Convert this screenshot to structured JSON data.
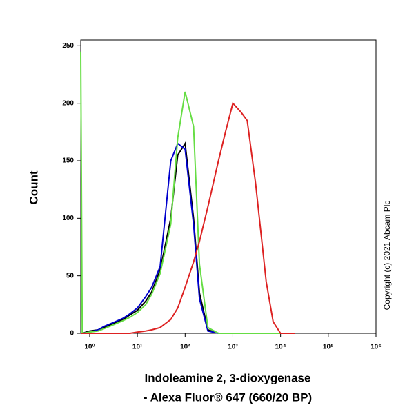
{
  "chart_data": {
    "type": "line",
    "xlabel": [
      "Indoleamine 2, 3-dioxygenase",
      "- Alexa Fluor® 647 (660/20 BP)"
    ],
    "ylabel": "Count",
    "annotation": "Copyright (c) 2021 Abcam Plc",
    "x": [
      0.65,
      0.7,
      1,
      1.5,
      2,
      3,
      5,
      7,
      10,
      15,
      20,
      30,
      50,
      70,
      100,
      150,
      200,
      300,
      500,
      700,
      1000,
      1500,
      2000,
      3000,
      5000,
      7000,
      10000,
      20000
    ],
    "xscale": "log",
    "xlim": [
      0.65,
      1000000
    ],
    "xticks": [
      {
        "value": 1,
        "label": "10⁰"
      },
      {
        "value": 10,
        "label": "10¹"
      },
      {
        "value": 100,
        "label": "10²"
      },
      {
        "value": 1000,
        "label": "10³"
      },
      {
        "value": 10000,
        "label": "10⁴"
      },
      {
        "value": 100000,
        "label": "10⁵"
      },
      {
        "value": 1000000,
        "label": "10⁶"
      }
    ],
    "ylim": [
      0,
      255
    ],
    "yticks": [
      0,
      50,
      100,
      150,
      200,
      250
    ],
    "series": [
      {
        "color": "#000000",
        "values": [
          0,
          0,
          2,
          3,
          5,
          8,
          12,
          16,
          20,
          28,
          36,
          55,
          100,
          155,
          165,
          100,
          35,
          3,
          0,
          0,
          0,
          0,
          0,
          0,
          0,
          0,
          0,
          0
        ]
      },
      {
        "color": "#0000cc",
        "values": [
          0,
          0,
          1,
          3,
          6,
          9,
          13,
          17,
          22,
          32,
          40,
          58,
          150,
          165,
          160,
          95,
          30,
          2,
          0,
          0,
          0,
          0,
          0,
          0,
          0,
          0,
          0,
          0
        ]
      },
      {
        "color": "#66dd44",
        "values": [
          245,
          0,
          1,
          2,
          4,
          7,
          11,
          14,
          18,
          25,
          34,
          52,
          95,
          170,
          210,
          180,
          60,
          5,
          0,
          0,
          0,
          0,
          0,
          0,
          0,
          0,
          0,
          0
        ]
      },
      {
        "color": "#dd2222",
        "values": [
          0,
          0,
          0,
          0,
          0,
          0,
          0,
          0,
          1,
          2,
          3,
          5,
          12,
          22,
          40,
          62,
          80,
          110,
          150,
          175,
          200,
          192,
          185,
          130,
          45,
          10,
          0,
          0
        ]
      }
    ]
  }
}
